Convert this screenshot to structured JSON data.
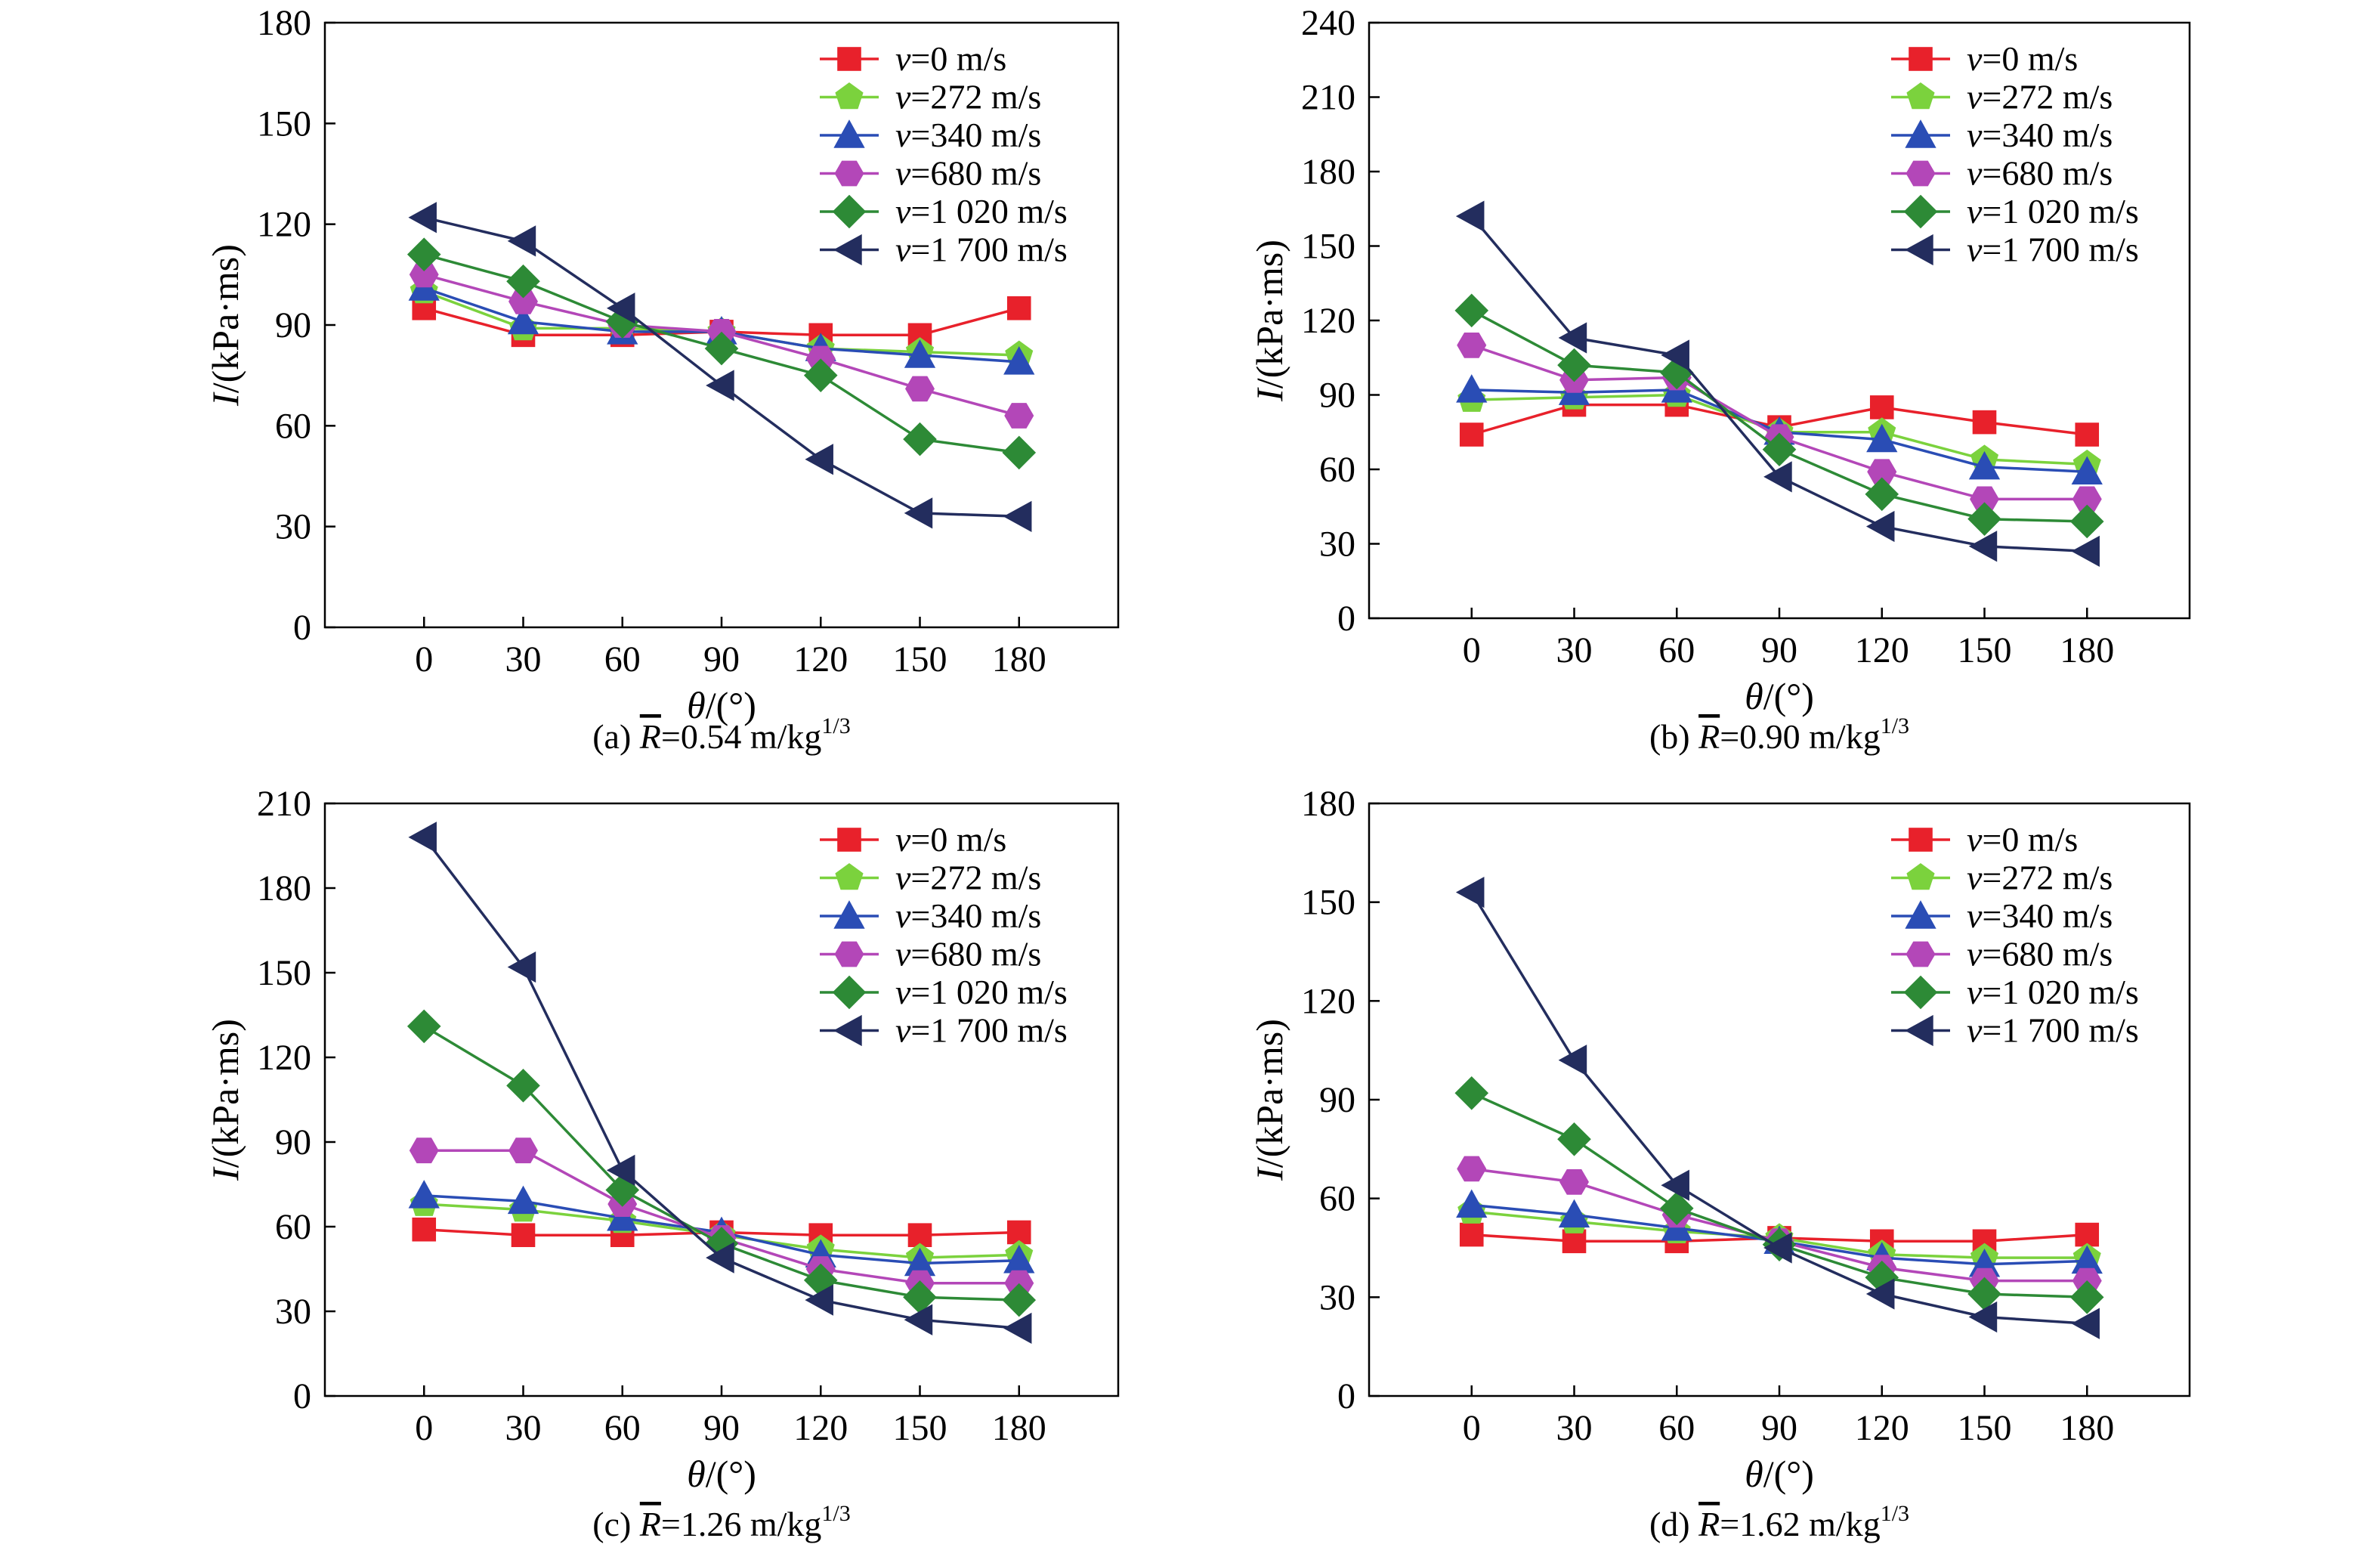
{
  "figure": {
    "series_styles": [
      {
        "key": "v0",
        "color": "#e8212b",
        "marker": "square"
      },
      {
        "key": "v272",
        "color": "#7bd23d",
        "marker": "pentagon"
      },
      {
        "key": "v340",
        "color": "#2a4db5",
        "marker": "triangle-up"
      },
      {
        "key": "v680",
        "color": "#b347b8",
        "marker": "hexagon"
      },
      {
        "key": "v1020",
        "color": "#2d8a36",
        "marker": "diamond"
      },
      {
        "key": "v1700",
        "color": "#232d5e",
        "marker": "triangle-left"
      }
    ]
  },
  "chart_data": [
    {
      "panel": "a",
      "type": "line",
      "caption_prefix": "(a) ",
      "caption_symbol": "R",
      "caption_value": "=0.54 m/kg",
      "caption_sup": "1/3",
      "xlabel_symbol": "θ",
      "xlabel_unit": "/(°)",
      "ylabel_symbol": "I",
      "ylabel_unit": "/(kPa·ms)",
      "x": [
        0,
        30,
        60,
        90,
        120,
        150,
        180
      ],
      "x_ticks": [
        "0",
        "30",
        "60",
        "90",
        "120",
        "150",
        "180"
      ],
      "xlim": [
        -30,
        210
      ],
      "ylim": [
        0,
        180
      ],
      "y_ticks": [
        "0",
        "30",
        "60",
        "90",
        "120",
        "150",
        "180"
      ],
      "legend_position": "top-right",
      "series": [
        {
          "name_symbol": "v",
          "name_text": "=0 m/s",
          "values": [
            95,
            87,
            87,
            88,
            87,
            87,
            95
          ]
        },
        {
          "name_symbol": "v",
          "name_text": "=272 m/s",
          "values": [
            100,
            89,
            89,
            88,
            83,
            82,
            81
          ]
        },
        {
          "name_symbol": "v",
          "name_text": "=340 m/s",
          "values": [
            101,
            91,
            88,
            88,
            83,
            81,
            79
          ]
        },
        {
          "name_symbol": "v",
          "name_text": "=680 m/s",
          "values": [
            105,
            97,
            90,
            88,
            80,
            71,
            63
          ]
        },
        {
          "name_symbol": "v",
          "name_text": "=1 020 m/s",
          "values": [
            111,
            103,
            91,
            83,
            75,
            56,
            52
          ]
        },
        {
          "name_symbol": "v",
          "name_text": "=1 700 m/s",
          "values": [
            122,
            115,
            95,
            72,
            50,
            34,
            33
          ]
        }
      ]
    },
    {
      "panel": "b",
      "type": "line",
      "caption_prefix": "(b) ",
      "caption_symbol": "R",
      "caption_value": "=0.90 m/kg",
      "caption_sup": "1/3",
      "xlabel_symbol": "θ",
      "xlabel_unit": "/(°)",
      "ylabel_symbol": "I",
      "ylabel_unit": "/(kPa·ms)",
      "x": [
        0,
        30,
        60,
        90,
        120,
        150,
        180
      ],
      "x_ticks": [
        "0",
        "30",
        "60",
        "90",
        "120",
        "150",
        "180"
      ],
      "xlim": [
        -30,
        210
      ],
      "ylim": [
        0,
        240
      ],
      "y_ticks": [
        "0",
        "30",
        "60",
        "90",
        "120",
        "150",
        "180",
        "210",
        "240"
      ],
      "legend_position": "top-right",
      "series": [
        {
          "name_symbol": "v",
          "name_text": "=0 m/s",
          "values": [
            74,
            86,
            86,
            77,
            85,
            79,
            74
          ]
        },
        {
          "name_symbol": "v",
          "name_text": "=272 m/s",
          "values": [
            88,
            89,
            90,
            75,
            75,
            64,
            62
          ]
        },
        {
          "name_symbol": "v",
          "name_text": "=340 m/s",
          "values": [
            92,
            91,
            92,
            75,
            72,
            61,
            59
          ]
        },
        {
          "name_symbol": "v",
          "name_text": "=680 m/s",
          "values": [
            110,
            96,
            97,
            73,
            59,
            48,
            48
          ]
        },
        {
          "name_symbol": "v",
          "name_text": "=1 020 m/s",
          "values": [
            124,
            102,
            99,
            68,
            50,
            40,
            39
          ]
        },
        {
          "name_symbol": "v",
          "name_text": "=1 700 m/s",
          "values": [
            162,
            113,
            106,
            57,
            37,
            29,
            27
          ]
        }
      ]
    },
    {
      "panel": "c",
      "type": "line",
      "caption_prefix": "(c) ",
      "caption_symbol": "R",
      "caption_value": "=1.26 m/kg",
      "caption_sup": "1/3",
      "xlabel_symbol": "θ",
      "xlabel_unit": "/(°)",
      "ylabel_symbol": "I",
      "ylabel_unit": "/(kPa·ms)",
      "x": [
        0,
        30,
        60,
        90,
        120,
        150,
        180
      ],
      "x_ticks": [
        "0",
        "30",
        "60",
        "90",
        "120",
        "150",
        "180"
      ],
      "xlim": [
        -30,
        210
      ],
      "ylim": [
        0,
        210
      ],
      "y_ticks": [
        "0",
        "30",
        "60",
        "90",
        "120",
        "150",
        "180",
        "210"
      ],
      "legend_position": "top-right",
      "series": [
        {
          "name_symbol": "v",
          "name_text": "=0 m/s",
          "values": [
            59,
            57,
            57,
            58,
            57,
            57,
            58
          ]
        },
        {
          "name_symbol": "v",
          "name_text": "=272 m/s",
          "values": [
            68,
            66,
            62,
            57,
            52,
            49,
            50
          ]
        },
        {
          "name_symbol": "v",
          "name_text": "=340 m/s",
          "values": [
            71,
            69,
            63,
            58,
            50,
            47,
            48
          ]
        },
        {
          "name_symbol": "v",
          "name_text": "=680 m/s",
          "values": [
            87,
            87,
            68,
            56,
            45,
            40,
            40
          ]
        },
        {
          "name_symbol": "v",
          "name_text": "=1 020 m/s",
          "values": [
            131,
            110,
            73,
            54,
            41,
            35,
            34
          ]
        },
        {
          "name_symbol": "v",
          "name_text": "=1 700 m/s",
          "values": [
            198,
            152,
            80,
            49,
            34,
            27,
            24
          ]
        }
      ]
    },
    {
      "panel": "d",
      "type": "line",
      "caption_prefix": "(d) ",
      "caption_symbol": "R",
      "caption_value": "=1.62 m/kg",
      "caption_sup": "1/3",
      "xlabel_symbol": "θ",
      "xlabel_unit": "/(°)",
      "ylabel_symbol": "I",
      "ylabel_unit": "/(kPa·ms)",
      "x": [
        0,
        30,
        60,
        90,
        120,
        150,
        180
      ],
      "x_ticks": [
        "0",
        "30",
        "60",
        "90",
        "120",
        "150",
        "180"
      ],
      "xlim": [
        -30,
        210
      ],
      "ylim": [
        0,
        180
      ],
      "y_ticks": [
        "0",
        "30",
        "60",
        "90",
        "120",
        "150",
        "180"
      ],
      "legend_position": "top-right",
      "series": [
        {
          "name_symbol": "v",
          "name_text": "=0 m/s",
          "values": [
            49,
            47,
            47,
            48,
            47,
            47,
            49
          ]
        },
        {
          "name_symbol": "v",
          "name_text": "=272 m/s",
          "values": [
            56,
            53,
            50,
            48,
            43,
            42,
            42
          ]
        },
        {
          "name_symbol": "v",
          "name_text": "=340 m/s",
          "values": [
            58,
            55,
            51,
            47,
            42,
            40,
            41
          ]
        },
        {
          "name_symbol": "v",
          "name_text": "=680 m/s",
          "values": [
            69,
            65,
            55,
            47,
            39,
            35,
            35
          ]
        },
        {
          "name_symbol": "v",
          "name_text": "=1 020 m/s",
          "values": [
            92,
            78,
            57,
            46,
            36,
            31,
            30
          ]
        },
        {
          "name_symbol": "v",
          "name_text": "=1 700 m/s",
          "values": [
            153,
            102,
            64,
            45,
            31,
            24,
            22
          ]
        }
      ]
    }
  ]
}
